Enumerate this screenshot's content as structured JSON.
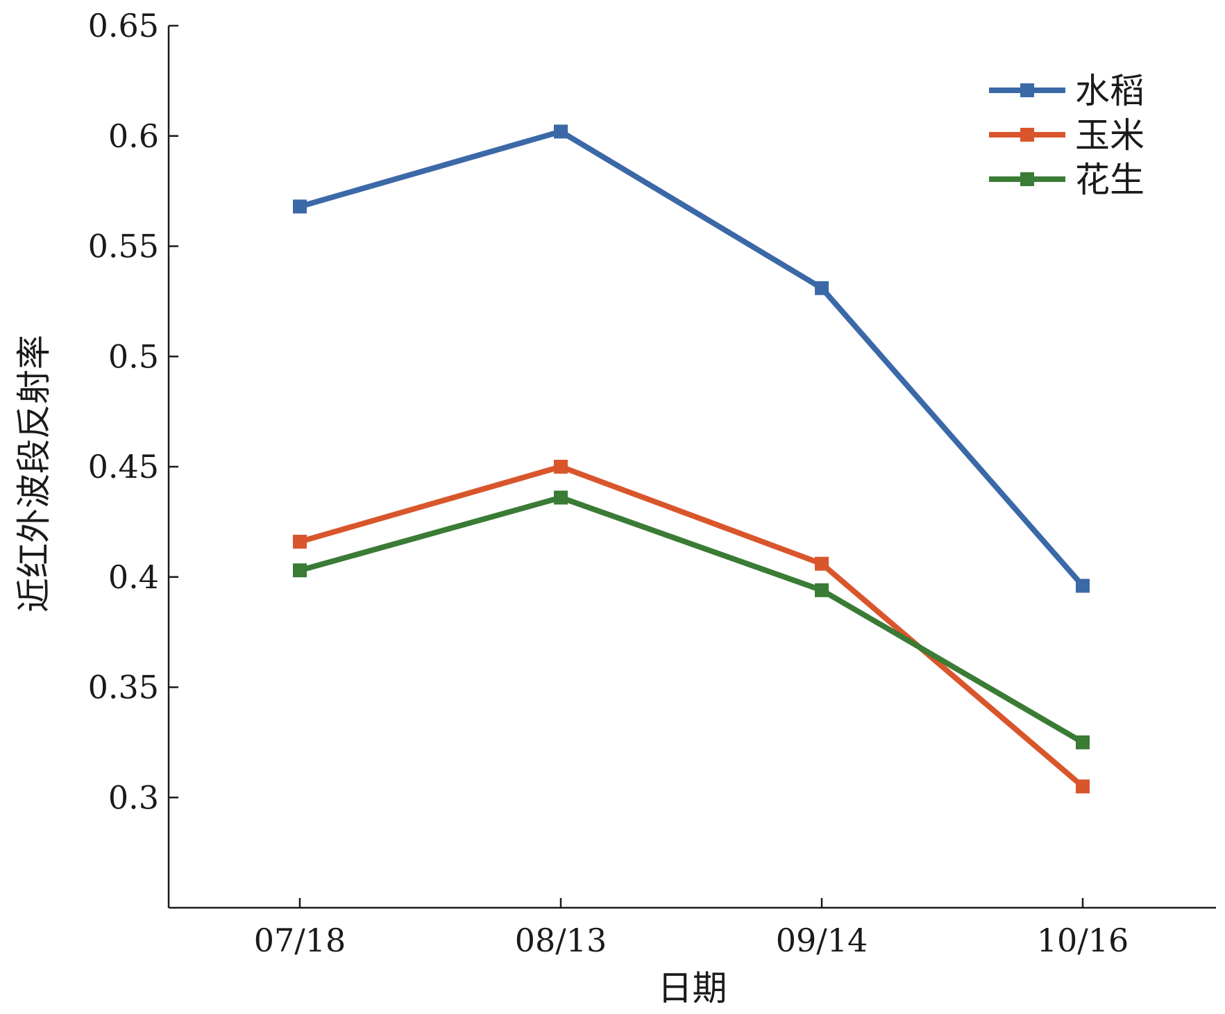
{
  "chart_data": {
    "type": "line",
    "categories": [
      "07/18",
      "08/13",
      "09/14",
      "10/16"
    ],
    "series": [
      {
        "name": "水稻",
        "values": [
          0.568,
          0.602,
          0.531,
          0.396
        ],
        "color": "#3b69a8"
      },
      {
        "name": "玉米",
        "values": [
          0.416,
          0.45,
          0.406,
          0.305
        ],
        "color": "#d9562c"
      },
      {
        "name": "花生",
        "values": [
          0.403,
          0.436,
          0.394,
          0.325
        ],
        "color": "#3a7b35"
      }
    ],
    "xlabel": "日期",
    "ylabel": "近红外波段反射率",
    "ylim": [
      0.25,
      0.65
    ],
    "yticks": [
      0.3,
      0.35,
      0.4,
      0.45,
      0.5,
      0.55,
      0.6,
      0.65
    ],
    "ytick_labels": [
      "0.3",
      "0.35",
      "0.4",
      "0.45",
      "0.5",
      "0.55",
      "0.6",
      "0.65"
    ],
    "grid": false,
    "legend_position": "top-right",
    "marker": "square"
  }
}
